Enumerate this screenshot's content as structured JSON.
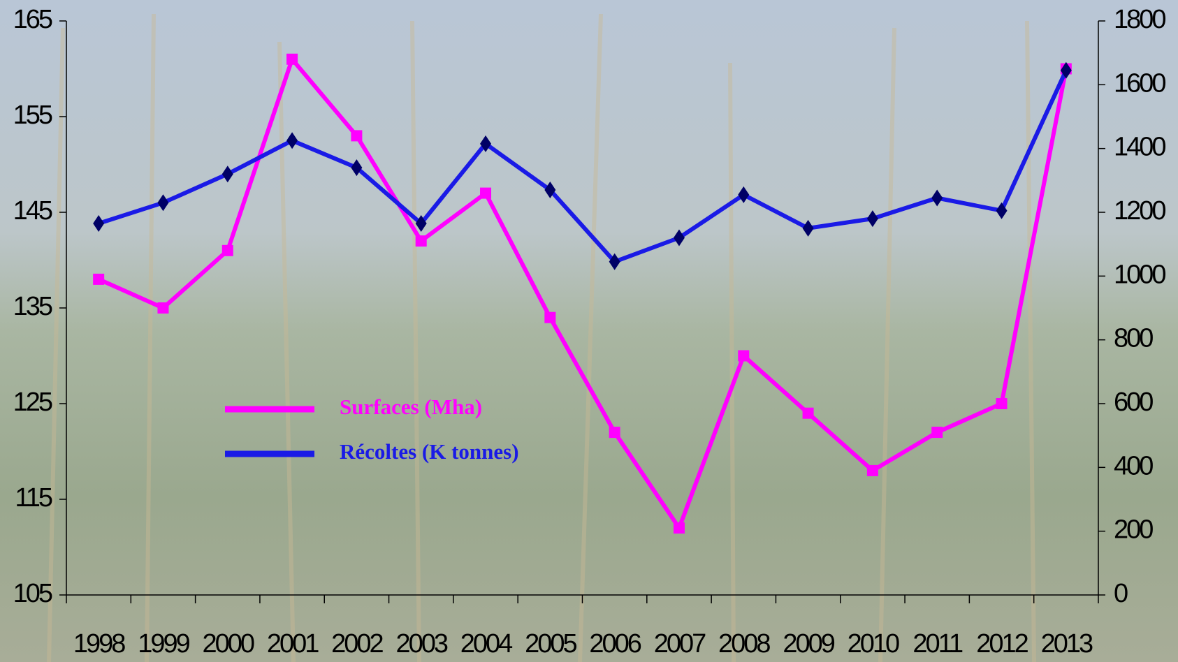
{
  "chart_data": {
    "type": "line",
    "categories": [
      "1998",
      "1999",
      "2000",
      "2001",
      "2002",
      "2003",
      "2004",
      "2005",
      "2006",
      "2007",
      "2008",
      "2009",
      "2010",
      "2011",
      "2012",
      "2013"
    ],
    "series": [
      {
        "name": "Surfaces (Mha)",
        "color": "#ff00ff",
        "marker": "square",
        "values": [
          138,
          135,
          141,
          161,
          153,
          142,
          147,
          134,
          122,
          112,
          130,
          124,
          118,
          122,
          125,
          160
        ]
      },
      {
        "name": "Récoltes (K tonnes)",
        "color": "#1a1ae6",
        "marker": "diamond",
        "axis": "y2",
        "values": [
          1165,
          1230,
          1320,
          1425,
          1340,
          1165,
          1415,
          1270,
          1045,
          1120,
          1255,
          1150,
          1180,
          1245,
          1205,
          1645
        ]
      }
    ],
    "ylim": [
      105,
      165
    ],
    "yticks": [
      105,
      115,
      125,
      135,
      145,
      155,
      165
    ],
    "y2lim": [
      0,
      1800
    ],
    "y2ticks": [
      0,
      200,
      400,
      600,
      800,
      1000,
      1200,
      1400,
      1600,
      1800
    ],
    "legend": "center-left"
  }
}
